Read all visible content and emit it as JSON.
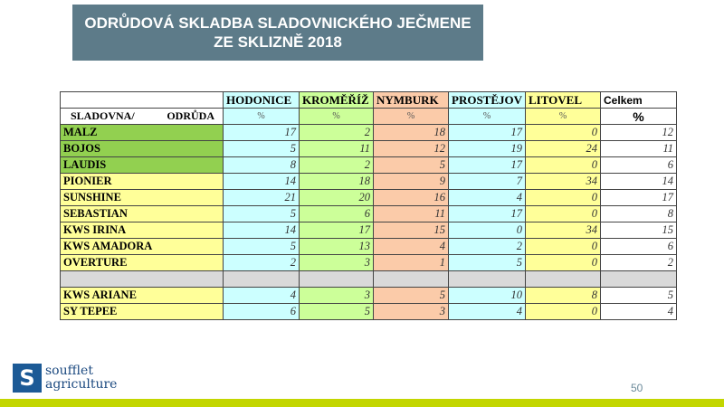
{
  "title": {
    "line1": "ODRŮDOVÁ SKLADBA SLADOVNICKÉHO JEČMENE",
    "line2": "ZE SKLIZNĚ 2018"
  },
  "table": {
    "corner_label_1": "SLADOVNA/",
    "corner_label_2": "ODRŮDA",
    "columns": [
      {
        "name": "HODONICE",
        "unit": "%",
        "color": "#ccffff"
      },
      {
        "name": "KROMĚŘÍŽ",
        "unit": "%",
        "color": "#ccff99"
      },
      {
        "name": "NYMBURK",
        "unit": "%",
        "color": "#fbcba9"
      },
      {
        "name": "PROSTĚJOV",
        "unit": "%",
        "color": "#ccffff"
      },
      {
        "name": "LITOVEL",
        "unit": "%",
        "color": "#ffff99"
      },
      {
        "name": "Celkem",
        "unit": "%",
        "color": "#ffffff"
      }
    ],
    "rows": [
      {
        "variety": "MALZ",
        "color": "#92d050",
        "values": [
          17,
          2,
          18,
          17,
          0,
          12
        ]
      },
      {
        "variety": "BOJOS",
        "color": "#92d050",
        "values": [
          5,
          11,
          12,
          19,
          24,
          11
        ]
      },
      {
        "variety": "LAUDIS",
        "color": "#92d050",
        "values": [
          8,
          2,
          5,
          17,
          0,
          6
        ]
      },
      {
        "variety": "PIONIER",
        "color": "#ffff99",
        "values": [
          14,
          18,
          9,
          7,
          34,
          14
        ]
      },
      {
        "variety": "SUNSHINE",
        "color": "#ffff99",
        "values": [
          21,
          20,
          16,
          4,
          0,
          17
        ]
      },
      {
        "variety": "SEBASTIAN",
        "color": "#ffff99",
        "values": [
          5,
          6,
          11,
          17,
          0,
          8
        ]
      },
      {
        "variety": "KWS IRINA",
        "color": "#ffff99",
        "values": [
          14,
          17,
          15,
          0,
          34,
          15
        ]
      },
      {
        "variety": "KWS AMADORA",
        "color": "#ffff99",
        "values": [
          5,
          13,
          4,
          2,
          0,
          6
        ]
      },
      {
        "variety": "OVERTURE",
        "color": "#ffff99",
        "values": [
          2,
          3,
          1,
          5,
          0,
          2
        ]
      },
      {
        "variety": "",
        "color": "#d9d9d9",
        "values": [
          "",
          "",
          "",
          "",
          "",
          ""
        ],
        "separator": true
      },
      {
        "variety": "KWS ARIANE",
        "color": "#ffff99",
        "values": [
          4,
          3,
          5,
          10,
          8,
          5
        ]
      },
      {
        "variety": "SY TEPEE",
        "color": "#ffff99",
        "values": [
          6,
          5,
          3,
          4,
          0,
          4
        ]
      }
    ]
  },
  "footer": {
    "logo_line1": "soufflet",
    "logo_line2": "agriculture",
    "page_number": "50",
    "bar_color": "#c3d600"
  }
}
